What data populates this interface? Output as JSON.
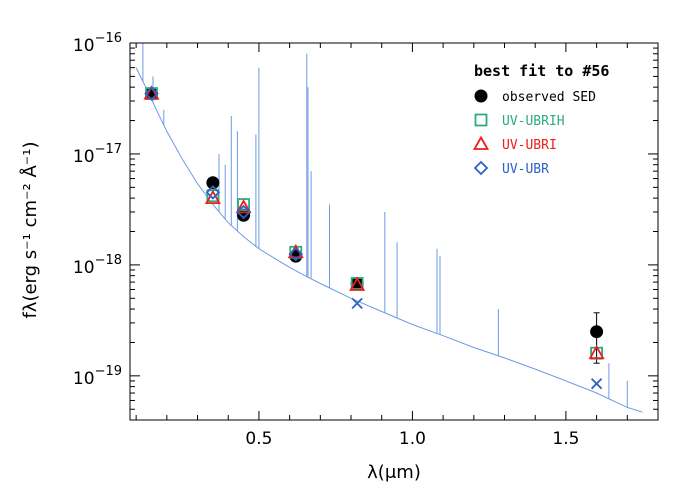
{
  "chart_data": {
    "type": "scatter",
    "title": "",
    "xlabel": "λ(μm)",
    "ylabel": "fλ(erg s⁻¹ cm⁻² Å⁻¹)",
    "xlim": [
      0.08,
      1.8
    ],
    "ylim": [
      4e-20,
      1e-16
    ],
    "yscale": "log",
    "xticks": [
      0.5,
      1.0,
      1.5
    ],
    "xtick_labels": [
      "0.5",
      "1.0",
      "1.5"
    ],
    "yticks": [
      1e-19,
      1e-18,
      1e-17,
      1e-16
    ],
    "ytick_labels": [
      {
        "base": "10",
        "exp": "−19"
      },
      {
        "base": "10",
        "exp": "−18"
      },
      {
        "base": "10",
        "exp": "−17"
      },
      {
        "base": "10",
        "exp": "−16"
      }
    ],
    "legend": {
      "title": "best fit to #56",
      "position": "top-right",
      "entries": [
        {
          "label": "observed SED",
          "marker": "filled-circle",
          "color": "#000000"
        },
        {
          "label": "UV-UBRIH",
          "marker": "square",
          "color": "#2eab7c"
        },
        {
          "label": "UV-UBRI",
          "marker": "triangle",
          "color": "#e8201f"
        },
        {
          "label": "UV-UBR",
          "marker": "diamond",
          "color": "#2d62c8"
        }
      ]
    },
    "series": [
      {
        "name": "observed SED",
        "marker": "filled-circle",
        "color": "#000000",
        "x": [
          0.15,
          0.35,
          0.45,
          0.62,
          0.82,
          1.6
        ],
        "y": [
          3.5e-17,
          5.5e-18,
          2.8e-18,
          1.2e-18,
          6.8e-19,
          2.5e-19
        ],
        "yerr": [
          null,
          null,
          null,
          null,
          null,
          1.2e-19
        ]
      },
      {
        "name": "UV-UBRIH",
        "marker": "square",
        "color": "#2eab7c",
        "x": [
          0.15,
          0.35,
          0.45,
          0.62,
          0.82,
          1.6
        ],
        "y": [
          3.5e-17,
          4.2e-18,
          3.5e-18,
          1.3e-18,
          6.8e-19,
          1.6e-19
        ]
      },
      {
        "name": "UV-UBRI",
        "marker": "triangle",
        "color": "#e8201f",
        "x": [
          0.15,
          0.35,
          0.45,
          0.62,
          0.82,
          1.6
        ],
        "y": [
          3.5e-17,
          4e-18,
          3.3e-18,
          1.3e-18,
          6.6e-19,
          1.6e-19
        ]
      },
      {
        "name": "UV-UBR",
        "marker": "diamond",
        "color": "#2d62c8",
        "x": [
          0.15,
          0.35,
          0.45,
          0.62
        ],
        "y": [
          3.5e-17,
          4.5e-18,
          3e-18,
          1.25e-18
        ]
      },
      {
        "name": "UV-UBR prediction",
        "marker": "cross",
        "color": "#2d62c8",
        "x": [
          0.82,
          1.6
        ],
        "y": [
          4.5e-19,
          8.5e-20
        ]
      }
    ],
    "model_spectrum": {
      "color": "#6e9be6",
      "continuum": [
        [
          0.1,
          6e-17
        ],
        [
          0.12,
          4.6e-17
        ],
        [
          0.14,
          3.6e-17
        ],
        [
          0.16,
          2.7e-17
        ],
        [
          0.2,
          1.6e-17
        ],
        [
          0.25,
          9e-18
        ],
        [
          0.3,
          5.4e-18
        ],
        [
          0.35,
          3.5e-18
        ],
        [
          0.4,
          2.4e-18
        ],
        [
          0.45,
          1.8e-18
        ],
        [
          0.5,
          1.4e-18
        ],
        [
          0.55,
          1.15e-18
        ],
        [
          0.6,
          9.5e-19
        ],
        [
          0.65,
          8e-19
        ],
        [
          0.7,
          6.8e-19
        ],
        [
          0.8,
          5e-19
        ],
        [
          0.9,
          3.8e-19
        ],
        [
          1.0,
          2.9e-19
        ],
        [
          1.1,
          2.3e-19
        ],
        [
          1.2,
          1.8e-19
        ],
        [
          1.3,
          1.45e-19
        ],
        [
          1.4,
          1.15e-19
        ],
        [
          1.5,
          9e-20
        ],
        [
          1.6,
          7e-20
        ],
        [
          1.7,
          5.2e-20
        ],
        [
          1.75,
          4.7e-20
        ]
      ],
      "lines": [
        [
          0.122,
          1e-16
        ],
        [
          0.155,
          5e-17
        ],
        [
          0.19,
          2.5e-17
        ],
        [
          0.37,
          1e-17
        ],
        [
          0.39,
          8e-18
        ],
        [
          0.41,
          2.2e-17
        ],
        [
          0.43,
          1.6e-17
        ],
        [
          0.49,
          1.5e-17
        ],
        [
          0.5,
          6e-17
        ],
        [
          0.656,
          8e-17
        ],
        [
          0.66,
          4e-17
        ],
        [
          0.67,
          7e-18
        ],
        [
          0.73,
          3.5e-18
        ],
        [
          0.91,
          3e-18
        ],
        [
          0.95,
          1.6e-18
        ],
        [
          1.08,
          1.4e-18
        ],
        [
          1.09,
          1.2e-18
        ],
        [
          1.28,
          4e-19
        ],
        [
          1.64,
          1.3e-19
        ],
        [
          1.7,
          9e-20
        ]
      ]
    }
  }
}
